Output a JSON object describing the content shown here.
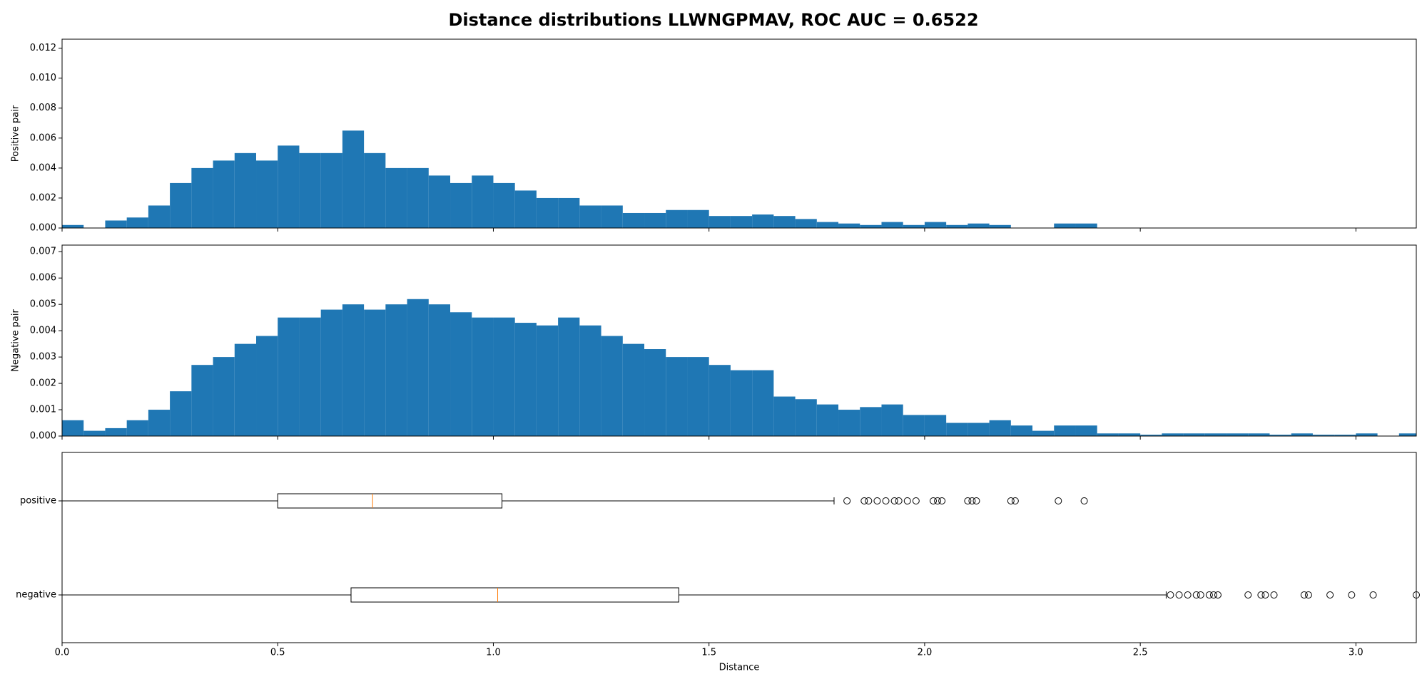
{
  "title": "Distance distributions LLWNGPMAV, ROC AUC = 0.6522",
  "chart_data": [
    {
      "type": "histogram",
      "ylabel": "Positive pair",
      "color": "#1f77b4",
      "bins": [
        0,
        0.05,
        0.1,
        0.15,
        0.2,
        0.25,
        0.3,
        0.35,
        0.4,
        0.45,
        0.5,
        0.55,
        0.6,
        0.65,
        0.7,
        0.75,
        0.8,
        0.85,
        0.9,
        0.95,
        1.0,
        1.05,
        1.1,
        1.15,
        1.2,
        1.25,
        1.3,
        1.35,
        1.4,
        1.45,
        1.5,
        1.55,
        1.6,
        1.65,
        1.7,
        1.75,
        1.8,
        1.85,
        1.9,
        1.95,
        2.0,
        2.05,
        2.1,
        2.15,
        2.2,
        2.25,
        2.3,
        2.35,
        2.4,
        2.45,
        2.5,
        2.55,
        2.6,
        2.65,
        2.7,
        2.75,
        2.8,
        2.85,
        2.9,
        2.95,
        3.0,
        3.05,
        3.1,
        3.14
      ],
      "values": [
        0.0002,
        0,
        0.0005,
        0.0007,
        0.0015,
        0.003,
        0.004,
        0.0045,
        0.005,
        0.0045,
        0.0055,
        0.005,
        0.005,
        0.0065,
        0.005,
        0.004,
        0.004,
        0.0035,
        0.003,
        0.0035,
        0.003,
        0.0025,
        0.002,
        0.002,
        0.0015,
        0.0015,
        0.001,
        0.001,
        0.0012,
        0.0012,
        0.0008,
        0.0008,
        0.0009,
        0.0008,
        0.0006,
        0.0004,
        0.0003,
        0.0002,
        0.0004,
        0.0002,
        0.0004,
        0.0002,
        0.0003,
        0.0002,
        0,
        0,
        0.0003,
        0.0003,
        0,
        0,
        0,
        0,
        0,
        0,
        0,
        0,
        0,
        0,
        0,
        0,
        0,
        0,
        0
      ],
      "xlim": [
        0,
        3.14
      ],
      "ylim": [
        0,
        0.0126
      ],
      "yticks": [
        {
          "value": 0,
          "label": "0.000"
        },
        {
          "value": 0.002,
          "label": "0.002"
        },
        {
          "value": 0.004,
          "label": "0.004"
        },
        {
          "value": 0.006,
          "label": "0.006"
        },
        {
          "value": 0.008,
          "label": "0.008"
        },
        {
          "value": 0.01,
          "label": "0.010"
        },
        {
          "value": 0.012,
          "label": "0.012"
        }
      ]
    },
    {
      "type": "histogram",
      "ylabel": "Negative pair",
      "color": "#1f77b4",
      "bins": [
        0,
        0.05,
        0.1,
        0.15,
        0.2,
        0.25,
        0.3,
        0.35,
        0.4,
        0.45,
        0.5,
        0.55,
        0.6,
        0.65,
        0.7,
        0.75,
        0.8,
        0.85,
        0.9,
        0.95,
        1.0,
        1.05,
        1.1,
        1.15,
        1.2,
        1.25,
        1.3,
        1.35,
        1.4,
        1.45,
        1.5,
        1.55,
        1.6,
        1.65,
        1.7,
        1.75,
        1.8,
        1.85,
        1.9,
        1.95,
        2.0,
        2.05,
        2.1,
        2.15,
        2.2,
        2.25,
        2.3,
        2.35,
        2.4,
        2.45,
        2.5,
        2.55,
        2.6,
        2.65,
        2.7,
        2.75,
        2.8,
        2.85,
        2.9,
        2.95,
        3.0,
        3.05,
        3.1,
        3.14
      ],
      "values": [
        0.0006,
        0.0002,
        0.0003,
        0.0006,
        0.001,
        0.0017,
        0.0027,
        0.003,
        0.0035,
        0.0038,
        0.0045,
        0.0045,
        0.0048,
        0.005,
        0.0048,
        0.005,
        0.0052,
        0.005,
        0.0047,
        0.0045,
        0.0045,
        0.0043,
        0.0042,
        0.0045,
        0.0042,
        0.0038,
        0.0035,
        0.0033,
        0.003,
        0.003,
        0.0027,
        0.0025,
        0.0025,
        0.0015,
        0.0014,
        0.0012,
        0.001,
        0.0011,
        0.0012,
        0.0008,
        0.0008,
        0.0005,
        0.0005,
        0.0006,
        0.0004,
        0.0002,
        0.0004,
        0.0004,
        0.0001,
        0.0001,
        5e-05,
        0.0001,
        0.0001,
        0.0001,
        0.0001,
        0.0001,
        5e-05,
        0.0001,
        5e-05,
        5e-05,
        0.0001,
        0,
        0.0001
      ],
      "xlim": [
        0,
        3.14
      ],
      "ylim": [
        0,
        0.00725
      ],
      "yticks": [
        {
          "value": 0,
          "label": "0.000"
        },
        {
          "value": 0.001,
          "label": "0.001"
        },
        {
          "value": 0.002,
          "label": "0.002"
        },
        {
          "value": 0.003,
          "label": "0.003"
        },
        {
          "value": 0.004,
          "label": "0.004"
        },
        {
          "value": 0.005,
          "label": "0.005"
        },
        {
          "value": 0.006,
          "label": "0.006"
        },
        {
          "value": 0.007,
          "label": "0.007"
        }
      ]
    },
    {
      "type": "box",
      "xlabel": "Distance",
      "categories": [
        "positive",
        "negative"
      ],
      "color": "#000000",
      "median_color": "#ff7f0e",
      "boxes": [
        {
          "whislo": 0,
          "q1": 0.5,
          "med": 0.72,
          "q3": 1.02,
          "whishi": 1.79,
          "fliers": [
            1.82,
            1.86,
            1.87,
            1.89,
            1.91,
            1.93,
            1.94,
            1.96,
            1.98,
            2.02,
            2.03,
            2.04,
            2.1,
            2.11,
            2.12,
            2.2,
            2.21,
            2.31,
            2.37
          ]
        },
        {
          "whislo": 0,
          "q1": 0.67,
          "med": 1.01,
          "q3": 1.43,
          "whishi": 2.56,
          "fliers": [
            2.57,
            2.59,
            2.61,
            2.63,
            2.64,
            2.66,
            2.67,
            2.68,
            2.75,
            2.78,
            2.79,
            2.81,
            2.88,
            2.89,
            2.94,
            2.99,
            3.04,
            3.14
          ]
        }
      ],
      "xlim": [
        0,
        3.14
      ],
      "xticks": [
        {
          "value": 0,
          "label": "0.0"
        },
        0.5,
        {
          "value": 1,
          "label": "1.0"
        },
        1.5,
        {
          "value": 2,
          "label": "2.0"
        },
        2.5,
        {
          "value": 3,
          "label": "3.0"
        }
      ]
    }
  ]
}
